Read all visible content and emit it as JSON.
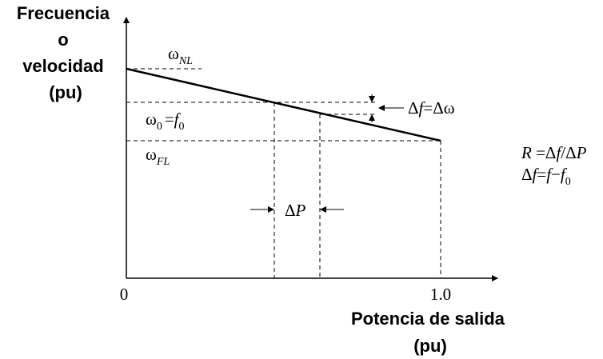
{
  "y_axis_label": [
    "Frecuencia",
    "o",
    "velocidad",
    "(pu)"
  ],
  "x_axis_label": [
    "Potencia de salida",
    "(pu)"
  ],
  "tick_origin": "0",
  "tick_one": "1.0",
  "omega": "ω",
  "label_nl": {
    "sub": "NL"
  },
  "label_zero": {
    "sub0": "0",
    "eq": "=",
    "f": "f",
    "sub_f": "0"
  },
  "label_fl": {
    "sub": "FL"
  },
  "delta_f_eq": {
    "d1": "Δ",
    "f": "f",
    "eq": "=Δω"
  },
  "delta_p": {
    "d": "Δ",
    "p": "P"
  },
  "formula_r": {
    "r": "R",
    "eq": " =Δ",
    "f": "f",
    "slash": "/Δ",
    "p": "P"
  },
  "formula_df": {
    "d": "Δ",
    "f1": "f",
    "eq": "=",
    "f2": "f",
    "minus": "−",
    "f3": "f",
    "sub": "0"
  }
}
